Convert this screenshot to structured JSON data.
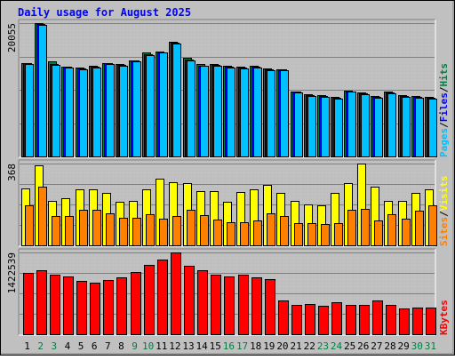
{
  "chart_data": {
    "type": "bar",
    "title": "Daily usage for August 2025",
    "colors": {
      "background": "#C0C0C0",
      "title": "#0000FF",
      "hits": "#008040",
      "files": "#0000FF",
      "pages": "#00C0FF",
      "visits": "#FFFF00",
      "sites": "#FF8000",
      "kbytes": "#FF0000",
      "weekday_label": "#000000",
      "weekend_label": "#008040"
    },
    "categories": [
      "1",
      "2",
      "3",
      "4",
      "5",
      "6",
      "7",
      "8",
      "9",
      "10",
      "11",
      "12",
      "13",
      "14",
      "15",
      "16",
      "17",
      "18",
      "19",
      "20",
      "21",
      "22",
      "23",
      "24",
      "25",
      "26",
      "27",
      "28",
      "29",
      "30",
      "31"
    ],
    "weekend_days": [
      "2",
      "3",
      "9",
      "10",
      "16",
      "17",
      "23",
      "24",
      "30",
      "31"
    ],
    "panels": [
      {
        "id": "hits-panel",
        "max_label": "20055",
        "ymax": 20055,
        "legend": [
          {
            "text": "Pages",
            "color": "#00C0FF"
          },
          {
            "text": "/",
            "color": "#000000"
          },
          {
            "text": "Files",
            "color": "#0000FF"
          },
          {
            "text": "/",
            "color": "#000000"
          },
          {
            "text": "Hits",
            "color": "#008040"
          }
        ],
        "series": [
          {
            "name": "Hits",
            "color": "#008040",
            "values": [
              14100,
              20055,
              14300,
              13550,
              13350,
              13650,
              14100,
              13850,
              14500,
              15600,
              15800,
              17300,
              14800,
              13850,
              13950,
              13600,
              13500,
              13600,
              13200,
              13150,
              9800,
              9350,
              9200,
              8950,
              9900,
              9600,
              9050,
              9750,
              9200,
              9050,
              8950
            ]
          },
          {
            "name": "Files",
            "color": "#0000FF",
            "values": [
              14000,
              19900,
              13900,
              13450,
              13200,
              13500,
              14000,
              13750,
              14400,
              15400,
              15700,
              17100,
              14600,
              13700,
              13800,
              13450,
              13400,
              13450,
              13100,
              13050,
              9700,
              9250,
              9100,
              8850,
              9800,
              9500,
              8950,
              9650,
              9100,
              8950,
              8850
            ]
          },
          {
            "name": "Pages",
            "color": "#00C0FF",
            "values": [
              13900,
              19800,
              13800,
              13350,
              13100,
              13400,
              13900,
              13650,
              14300,
              15300,
              15600,
              17000,
              14500,
              13600,
              13700,
              13350,
              13300,
              13350,
              13000,
              12950,
              9600,
              9150,
              9000,
              8750,
              9700,
              9400,
              8850,
              9550,
              9000,
              8850,
              8750
            ]
          }
        ]
      },
      {
        "id": "visits-panel",
        "max_label": "368",
        "ymax": 368,
        "legend": [
          {
            "text": "Sites",
            "color": "#FF8000"
          },
          {
            "text": "/",
            "color": "#000000"
          },
          {
            "text": "Visits",
            "color": "#FFFF00"
          }
        ],
        "series": [
          {
            "name": "Visits",
            "color": "#FFFF00",
            "values": [
              255,
              360,
              200,
              210,
              250,
              250,
              235,
              195,
              200,
              250,
              300,
              285,
              280,
              245,
              245,
              195,
              240,
              250,
              270,
              235,
              200,
              185,
              180,
              235,
              280,
              368,
              265,
              200,
              200,
              235,
              250
            ]
          },
          {
            "name": "Sites",
            "color": "#FF8000",
            "values": [
              180,
              265,
              130,
              130,
              160,
              160,
              145,
              125,
              125,
              140,
              120,
              130,
              160,
              135,
              115,
              105,
              105,
              110,
              145,
              130,
              100,
              100,
              95,
              100,
              160,
              165,
              110,
              140,
              120,
              155,
              180
            ]
          }
        ]
      },
      {
        "id": "kbytes-panel",
        "max_label": "1422539",
        "ymax": 1422539,
        "legend": [
          {
            "text": "KBytes",
            "color": "#FF0000"
          }
        ],
        "series": [
          {
            "name": "KBytes",
            "color": "#FF0000",
            "values": [
              1060000,
              1115000,
              1030000,
              1010000,
              935000,
              900000,
              940000,
              985000,
              1080000,
              1200000,
              1300000,
              1422539,
              1185000,
              1110000,
              1030000,
              1005000,
              1030000,
              985000,
              955000,
              580000,
              515000,
              520000,
              500000,
              560000,
              515000,
              510000,
              590000,
              510000,
              450000,
              460000,
              460000
            ]
          }
        ]
      }
    ]
  }
}
